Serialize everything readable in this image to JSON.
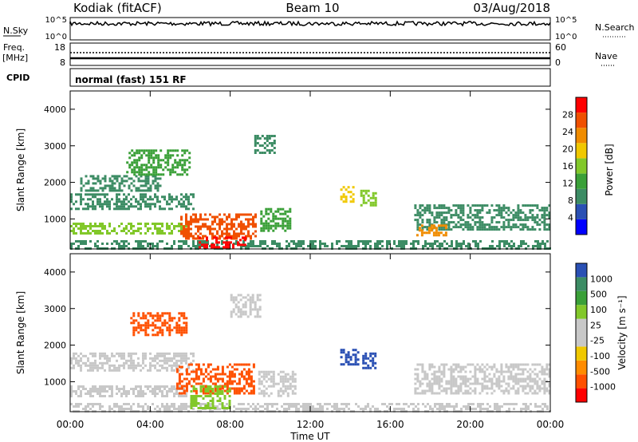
{
  "header": {
    "station": "Kodiak (fitACF)",
    "beam": "Beam 10",
    "date": "03/Aug/2018"
  },
  "top_panels": {
    "nsky_label": "N.Sky",
    "nsky_ticks": [
      "10^5",
      "10^0"
    ],
    "nsearch_label": "N.Search",
    "nsearch_ticks": [
      "10^5",
      "10^0"
    ],
    "freq_label": "Freq.",
    "freq_unit": "[MHz]",
    "freq_ticks": [
      "18",
      "8"
    ],
    "nave_label": "Nave",
    "nave_ticks": [
      "60",
      "0"
    ],
    "cpid_label": "CPID",
    "cpid_value": "normal (fast) 151 RF"
  },
  "colors": {
    "power_scale": [
      "#0000ff",
      "#2a50b4",
      "#3c8c64",
      "#3aa038",
      "#82c82a",
      "#f0c800",
      "#f08c00",
      "#f05000",
      "#ff0000"
    ],
    "velocity_scale": [
      "#ff0000",
      "#ff5000",
      "#ff8c00",
      "#f0c800",
      "#c8c8c8",
      "#c8c8c8",
      "#82c82a",
      "#3aa038",
      "#3c8c64",
      "#2a50b4"
    ]
  },
  "chart_data": [
    {
      "type": "heatmap",
      "name": "power",
      "ylabel": "Slant Range [km]",
      "xlabel": "Time UT",
      "xlim": [
        0,
        24
      ],
      "ylim": [
        180,
        4500
      ],
      "xticks": [
        "00:00",
        "04:00",
        "08:00",
        "12:00",
        "16:00",
        "20:00",
        "00:00"
      ],
      "yticks": [
        1000,
        2000,
        3000,
        4000
      ],
      "colorbar": {
        "label": "Power [dB]",
        "ticks": [
          4,
          8,
          12,
          16,
          20,
          24,
          28
        ],
        "range": [
          0,
          32
        ]
      },
      "regions": [
        {
          "t": [
            0.0,
            24.0
          ],
          "r": [
            200,
            420
          ],
          "level": 10
        },
        {
          "t": [
            0.0,
            5.8
          ],
          "r": [
            600,
            900
          ],
          "level": 16
        },
        {
          "t": [
            0.0,
            6.2
          ],
          "r": [
            1300,
            1700
          ],
          "level": 9
        },
        {
          "t": [
            0.5,
            4.5
          ],
          "r": [
            1800,
            2200
          ],
          "level": 8
        },
        {
          "t": [
            5.5,
            9.3
          ],
          "r": [
            450,
            1150
          ],
          "level": 26
        },
        {
          "t": [
            6.3,
            8.8
          ],
          "r": [
            250,
            520
          ],
          "level": 29
        },
        {
          "t": [
            2.8,
            6.0
          ],
          "r": [
            2200,
            2900
          ],
          "level": 13
        },
        {
          "t": [
            9.5,
            11.0
          ],
          "r": [
            650,
            1300
          ],
          "level": 13
        },
        {
          "t": [
            13.5,
            14.2
          ],
          "r": [
            1500,
            1900
          ],
          "level": 18
        },
        {
          "t": [
            14.5,
            15.3
          ],
          "r": [
            1400,
            1800
          ],
          "level": 17
        },
        {
          "t": [
            17.2,
            24.0
          ],
          "r": [
            700,
            1400
          ],
          "level": 10
        },
        {
          "t": [
            17.3,
            18.8
          ],
          "r": [
            550,
            850
          ],
          "level": 22
        },
        {
          "t": [
            9.2,
            10.2
          ],
          "r": [
            2800,
            3300
          ],
          "level": 8
        }
      ]
    },
    {
      "type": "heatmap",
      "name": "velocity",
      "ylabel": "Slant Range [km]",
      "xlabel": "Time UT",
      "xlim": [
        0,
        24
      ],
      "ylim": [
        180,
        4500
      ],
      "xticks": [
        "00:00",
        "04:00",
        "08:00",
        "12:00",
        "16:00",
        "20:00",
        "00:00"
      ],
      "yticks": [
        1000,
        2000,
        3000,
        4000
      ],
      "colorbar": {
        "label": "Velocity [m s⁻¹]",
        "ticks": [
          "-1000",
          "-500",
          "-100",
          "-25",
          "25",
          "100",
          "500",
          "1000"
        ]
      },
      "regions": [
        {
          "t": [
            0.0,
            24.0
          ],
          "r": [
            200,
            420
          ],
          "level": "ground"
        },
        {
          "t": [
            0.0,
            6.2
          ],
          "r": [
            1300,
            1800
          ],
          "level": "ground"
        },
        {
          "t": [
            0.0,
            5.8
          ],
          "r": [
            600,
            900
          ],
          "level": "ground"
        },
        {
          "t": [
            5.3,
            9.2
          ],
          "r": [
            700,
            1500
          ],
          "level": -500
        },
        {
          "t": [
            6.0,
            8.0
          ],
          "r": [
            300,
            900
          ],
          "level": 100
        },
        {
          "t": [
            3.0,
            5.8
          ],
          "r": [
            2300,
            2900
          ],
          "level": -300
        },
        {
          "t": [
            13.5,
            14.4
          ],
          "r": [
            1500,
            1900
          ],
          "level": 800
        },
        {
          "t": [
            14.6,
            15.3
          ],
          "r": [
            1400,
            1800
          ],
          "level": 800
        },
        {
          "t": [
            17.2,
            24.0
          ],
          "r": [
            700,
            1500
          ],
          "level": "ground"
        },
        {
          "t": [
            9.4,
            11.2
          ],
          "r": [
            600,
            1300
          ],
          "level": "ground"
        },
        {
          "t": [
            8.0,
            9.5
          ],
          "r": [
            2800,
            3400
          ],
          "level": "ground"
        }
      ]
    }
  ]
}
